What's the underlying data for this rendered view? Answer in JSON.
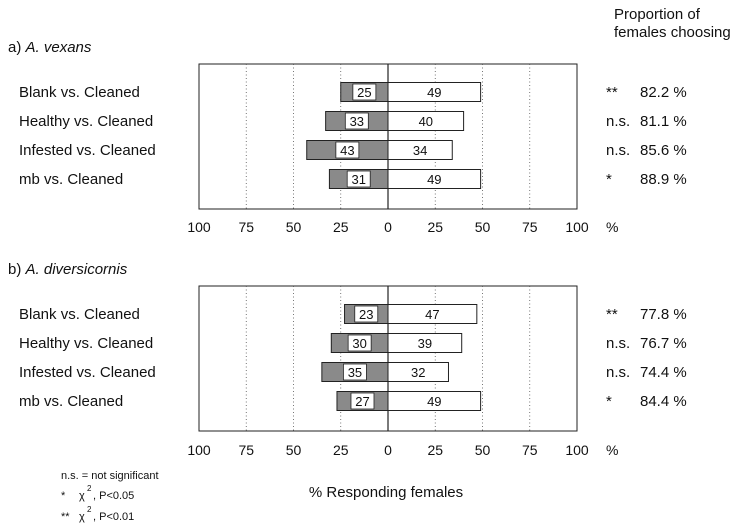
{
  "header": {
    "line1": "Proportion of",
    "line2": "females choosing"
  },
  "chart_data": [
    {
      "type": "bar",
      "panel_label": "a)",
      "species": "A. vexans",
      "categories": [
        "Blank vs. Cleaned",
        "Healthy vs. Cleaned",
        "Infested vs. Cleaned",
        "mb vs. Cleaned"
      ],
      "series": [
        {
          "values": [
            25,
            33,
            43,
            31
          ],
          "color": "#8a8a8a"
        },
        {
          "values": [
            49,
            40,
            34,
            49
          ],
          "color": "#ffffff"
        }
      ],
      "significance": [
        "**",
        "n.s.",
        "n.s.",
        "*"
      ],
      "proportion": [
        "82.2 %",
        "81.1 %",
        "85.6 %",
        "88.9 %"
      ],
      "xticks": [
        "100",
        "75",
        "50",
        "25",
        "0",
        "25",
        "50",
        "75",
        "100"
      ],
      "x_unit": "%",
      "xlim": [
        -100,
        100
      ],
      "grid": "dotted vertical at 25, 50, 75"
    },
    {
      "type": "bar",
      "panel_label": "b)",
      "species": "A. diversicornis",
      "categories": [
        "Blank vs. Cleaned",
        "Healthy vs. Cleaned",
        "Infested vs. Cleaned",
        "mb vs. Cleaned"
      ],
      "series": [
        {
          "values": [
            23,
            30,
            35,
            27
          ],
          "color": "#8a8a8a"
        },
        {
          "values": [
            47,
            39,
            32,
            49
          ],
          "color": "#ffffff"
        }
      ],
      "significance": [
        "**",
        "n.s.",
        "n.s.",
        "*"
      ],
      "proportion": [
        "77.8 %",
        "76.7 %",
        "74.4 %",
        "84.4 %"
      ],
      "xticks": [
        "100",
        "75",
        "50",
        "25",
        "0",
        "25",
        "50",
        "75",
        "100"
      ],
      "x_unit": "%",
      "xlim": [
        -100,
        100
      ],
      "grid": "dotted vertical at 25, 50, 75"
    }
  ],
  "xlabel": "% Responding females",
  "legend": {
    "ns": "n.s. = not significant",
    "one_star": "*",
    "two_star": "**",
    "chi": "χ",
    "exp": "2",
    "p05": ", P<0.05",
    "p01": ", P<0.01"
  }
}
